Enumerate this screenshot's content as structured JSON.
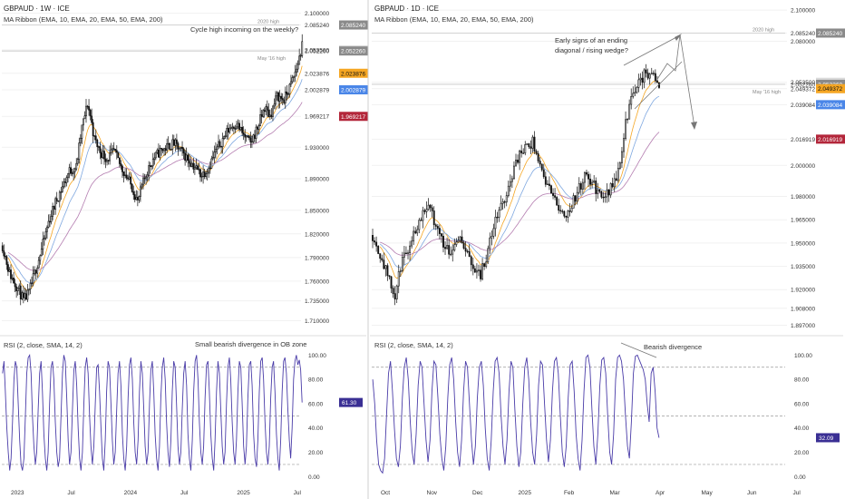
{
  "colors": {
    "bull": "#ffffff",
    "bear": "#111111",
    "wick": "#111111",
    "ema10": "#f5a623",
    "ema20": "#7fa8e0",
    "ema50": "#b47db0",
    "rsi": "#4a3ca8",
    "axis_text": "#333333",
    "grid_dash": "#9a9a9a",
    "annotation": "#555555",
    "badge_close": "#d9d9d9",
    "badge_ema10": "#f5a623",
    "badge_ema20": "#4a86e8",
    "badge_ema50": "#b3263a",
    "badge_rsi": "#3a2f94"
  },
  "chart_data": [
    {
      "type": "candlestick",
      "title": "GBPAUD · 1W · ICE",
      "subtitle": "MA Ribbon (EMA, 10, EMA, 20, EMA, 50, EMA, 200)",
      "annotation": "Cycle high incoming on the weekly?",
      "level_labels": [
        "2020 high",
        "May '16 high"
      ],
      "levels": [
        2.0852,
        2.0522
      ],
      "y_ticks": [
        "2.100000",
        "2.085240",
        "2.053500",
        "2.052260",
        "2.023876",
        "2.002879",
        "1.969217",
        "1.930000",
        "1.890000",
        "1.850000",
        "1.820000",
        "1.790000",
        "1.760000",
        "1.735000",
        "1.710000"
      ],
      "price_badges": [
        {
          "label": "2.085240",
          "value": 2.0852,
          "role": "level"
        },
        {
          "label": "2.053500",
          "value": 2.0535,
          "role": "close"
        },
        {
          "label": "2.052260",
          "value": 2.0522,
          "role": "level"
        },
        {
          "label": "2.023876",
          "value": 2.0239,
          "role": "ema10"
        },
        {
          "label": "2.002879",
          "value": 2.0029,
          "role": "ema20"
        },
        {
          "label": "1.969217",
          "value": 1.9692,
          "role": "ema50"
        }
      ],
      "ylim": [
        1.7,
        2.11
      ],
      "x_ticks": [
        "2023",
        "Jul",
        "2024",
        "Jul",
        "2025",
        "Jul"
      ],
      "series_waypoints": [
        [
          0,
          1.805
        ],
        [
          5,
          1.77
        ],
        [
          8,
          1.76
        ],
        [
          12,
          1.748
        ],
        [
          15,
          1.735
        ],
        [
          19,
          1.745
        ],
        [
          23,
          1.77
        ],
        [
          28,
          1.8
        ],
        [
          33,
          1.835
        ],
        [
          38,
          1.86
        ],
        [
          43,
          1.88
        ],
        [
          48,
          1.9
        ],
        [
          53,
          1.905
        ],
        [
          57,
          1.955
        ],
        [
          61,
          1.985
        ],
        [
          63,
          1.97
        ],
        [
          66,
          1.94
        ],
        [
          70,
          1.925
        ],
        [
          75,
          1.915
        ],
        [
          80,
          1.925
        ],
        [
          85,
          1.905
        ],
        [
          90,
          1.89
        ],
        [
          94,
          1.875
        ],
        [
          97,
          1.86
        ],
        [
          100,
          1.88
        ],
        [
          104,
          1.9
        ],
        [
          108,
          1.915
        ],
        [
          113,
          1.925
        ],
        [
          118,
          1.93
        ],
        [
          123,
          1.935
        ],
        [
          128,
          1.925
        ],
        [
          133,
          1.915
        ],
        [
          138,
          1.905
        ],
        [
          143,
          1.895
        ],
        [
          148,
          1.905
        ],
        [
          153,
          1.925
        ],
        [
          158,
          1.94
        ],
        [
          163,
          1.955
        ],
        [
          168,
          1.96
        ],
        [
          173,
          1.945
        ],
        [
          178,
          1.935
        ],
        [
          183,
          1.955
        ],
        [
          188,
          1.98
        ],
        [
          192,
          1.97
        ],
        [
          197,
          1.995
        ],
        [
          202,
          1.99
        ],
        [
          207,
          2.01
        ],
        [
          211,
          2.03
        ],
        [
          215,
          2.058
        ]
      ],
      "rsi": {
        "title": "RSI (2, close, SMA, 14, 2)",
        "annotation": "Small bearish divergence in OB zone",
        "value_badge": "61.30",
        "y_ticks": [
          "100.00",
          "80.00",
          "60.00",
          "40.00",
          "20.00",
          "0.00"
        ],
        "ylim": [
          -5,
          110
        ],
        "bands": [
          90,
          50,
          10
        ],
        "values": [
          85,
          95,
          70,
          40,
          20,
          5,
          15,
          45,
          80,
          95,
          90,
          60,
          30,
          10,
          5,
          15,
          50,
          85,
          98,
          100,
          85,
          50,
          25,
          10,
          20,
          55,
          85,
          95,
          70,
          35,
          15,
          5,
          20,
          60,
          90,
          95,
          80,
          45,
          20,
          8,
          15,
          50,
          85,
          100,
          95,
          65,
          30,
          10,
          20,
          55,
          88,
          95,
          75,
          40,
          15,
          5,
          20,
          60,
          90,
          98,
          85,
          50,
          25,
          10,
          25,
          60,
          90,
          92,
          70,
          40,
          15,
          5,
          30,
          70,
          95,
          90,
          60,
          30,
          10,
          20,
          55,
          85,
          95,
          75,
          35,
          15,
          5,
          25,
          65,
          92,
          98,
          80,
          45,
          20,
          10,
          30,
          70,
          95,
          85,
          55,
          25,
          10,
          20,
          60,
          88,
          95,
          70,
          35,
          15,
          5,
          25,
          65,
          90,
          98,
          80,
          45,
          20,
          8,
          30,
          70,
          95,
          90,
          60,
          25,
          10,
          20,
          55,
          85,
          95,
          75,
          35,
          15,
          5,
          30,
          70,
          95,
          100,
          80,
          45,
          20,
          10,
          25,
          65,
          92,
          95,
          70,
          35,
          15,
          5,
          30,
          70,
          95,
          85,
          55,
          25,
          10,
          20,
          60,
          90,
          98,
          80,
          45,
          20,
          10,
          30,
          70,
          95,
          90,
          60,
          25,
          10,
          25,
          65,
          92,
          95,
          75,
          35,
          15,
          8,
          30,
          70,
          95,
          98,
          80,
          45,
          20,
          10,
          25,
          65,
          90,
          95,
          70,
          35,
          15,
          5,
          30,
          70,
          95,
          98,
          85,
          55,
          30,
          15,
          40,
          80,
          95,
          100,
          92,
          96,
          88,
          61
        ]
      }
    },
    {
      "type": "candlestick",
      "title": "GBPAUD · 1D · ICE",
      "subtitle": "MA Ribbon (EMA, 10, EMA, 20, EMA, 50, EMA, 200)",
      "annotation_line1": "Early signs of an ending",
      "annotation_line2": "diagonal / rising wedge?",
      "level_labels": [
        "2020 high",
        "May '16 high"
      ],
      "levels": [
        2.0852,
        2.0522
      ],
      "y_ticks": [
        "2.100000",
        "2.085240",
        "2.080000",
        "2.053500",
        "2.052260",
        "2.049372",
        "2.039084",
        "2.016919",
        "2.000000",
        "1.980000",
        "1.965000",
        "1.950000",
        "1.935000",
        "1.920000",
        "1.908000",
        "1.897000"
      ],
      "price_badges": [
        {
          "label": "2.085240",
          "value": 2.0852,
          "role": "level"
        },
        {
          "label": "2.053500",
          "value": 2.0535,
          "role": "close"
        },
        {
          "label": "2.052260",
          "value": 2.0522,
          "role": "level"
        },
        {
          "label": "2.049372",
          "value": 2.0494,
          "role": "ema10"
        },
        {
          "label": "2.039084",
          "value": 2.0391,
          "role": "ema20"
        },
        {
          "label": "2.016919",
          "value": 2.0169,
          "role": "ema50"
        }
      ],
      "ylim": [
        1.895,
        2.103
      ],
      "x_ticks": [
        "Oct",
        "Nov",
        "Dec",
        "2025",
        "Feb",
        "Mar",
        "Apr",
        "May",
        "Jun",
        "Jul"
      ],
      "series_waypoints": [
        [
          0,
          1.955
        ],
        [
          5,
          1.94
        ],
        [
          9,
          1.925
        ],
        [
          12,
          1.915
        ],
        [
          15,
          1.935
        ],
        [
          20,
          1.95
        ],
        [
          25,
          1.965
        ],
        [
          29,
          1.975
        ],
        [
          33,
          1.965
        ],
        [
          38,
          1.95
        ],
        [
          42,
          1.945
        ],
        [
          46,
          1.955
        ],
        [
          50,
          1.945
        ],
        [
          54,
          1.935
        ],
        [
          58,
          1.93
        ],
        [
          62,
          1.945
        ],
        [
          66,
          1.965
        ],
        [
          70,
          1.975
        ],
        [
          74,
          1.99
        ],
        [
          78,
          2.005
        ],
        [
          82,
          2.01
        ],
        [
          86,
          2.015
        ],
        [
          88,
          2.01
        ],
        [
          91,
          1.995
        ],
        [
          95,
          1.985
        ],
        [
          99,
          1.975
        ],
        [
          103,
          1.968
        ],
        [
          107,
          1.975
        ],
        [
          111,
          1.985
        ],
        [
          115,
          1.995
        ],
        [
          117,
          1.99
        ],
        [
          120,
          1.985
        ],
        [
          124,
          1.978
        ],
        [
          128,
          1.985
        ],
        [
          132,
          1.995
        ],
        [
          135,
          2.02
        ],
        [
          138,
          2.04
        ],
        [
          141,
          2.05
        ],
        [
          144,
          2.055
        ],
        [
          147,
          2.06
        ],
        [
          151,
          2.058
        ],
        [
          154,
          2.053
        ]
      ],
      "rsi": {
        "title": "RSI (2, close, SMA, 14, 2)",
        "annotation": "Bearish divergence",
        "value_badge": "32.09",
        "y_ticks": [
          "100.00",
          "80.00",
          "60.00",
          "40.00",
          "20.00",
          "0.00"
        ],
        "ylim": [
          -5,
          110
        ],
        "bands": [
          90,
          50,
          10
        ],
        "values": [
          80,
          60,
          30,
          10,
          5,
          3,
          15,
          50,
          85,
          95,
          70,
          40,
          15,
          8,
          25,
          65,
          90,
          98,
          80,
          45,
          20,
          10,
          35,
          75,
          95,
          90,
          60,
          30,
          12,
          30,
          70,
          95,
          92,
          65,
          35,
          15,
          5,
          25,
          65,
          92,
          98,
          80,
          45,
          20,
          8,
          30,
          70,
          95,
          90,
          60,
          30,
          10,
          25,
          65,
          90,
          95,
          75,
          40,
          15,
          5,
          30,
          70,
          95,
          98,
          85,
          50,
          25,
          10,
          30,
          70,
          95,
          90,
          55,
          25,
          8,
          20,
          60,
          90,
          98,
          80,
          45,
          20,
          10,
          35,
          75,
          95,
          92,
          60,
          30,
          12,
          30,
          70,
          95,
          98,
          85,
          50,
          20,
          8,
          25,
          65,
          92,
          95,
          70,
          35,
          15,
          5,
          30,
          70,
          98,
          100,
          90,
          55,
          25,
          10,
          35,
          75,
          96,
          98,
          85,
          50,
          20,
          10,
          35,
          80,
          98,
          100,
          95,
          80,
          50,
          25,
          15,
          45,
          85,
          99,
          100,
          96,
          92,
          88,
          80,
          60,
          45,
          85,
          90,
          70,
          40,
          32
        ]
      }
    }
  ]
}
